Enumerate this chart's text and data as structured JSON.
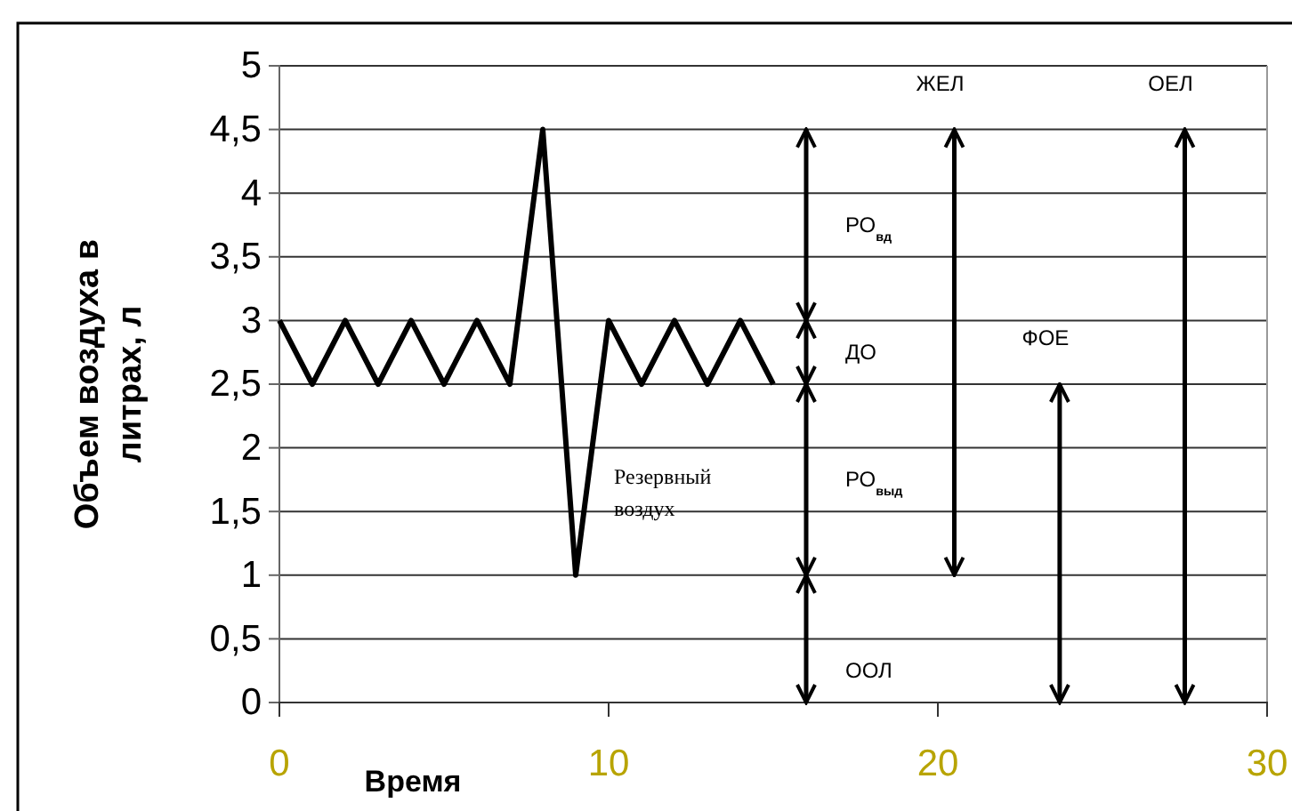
{
  "chart_data": {
    "type": "line",
    "xlabel": "Время",
    "ylabel": "Объем воздуха в литрах, л",
    "xlim": [
      0,
      30
    ],
    "xticks": [
      0,
      10,
      20,
      30
    ],
    "ylim": [
      0,
      5
    ],
    "yticks": [
      {
        "value": 0,
        "label": "0"
      },
      {
        "value": 0.5,
        "label": "0,5"
      },
      {
        "value": 1,
        "label": "1"
      },
      {
        "value": 1.5,
        "label": "1,5"
      },
      {
        "value": 2,
        "label": "2"
      },
      {
        "value": 2.5,
        "label": "2,5"
      },
      {
        "value": 3,
        "label": "3"
      },
      {
        "value": 3.5,
        "label": "3,5"
      },
      {
        "value": 4,
        "label": "4"
      },
      {
        "value": 4.5,
        "label": "4,5"
      },
      {
        "value": 5,
        "label": "5"
      }
    ],
    "grid": "y",
    "line_style": "solid",
    "series": [
      {
        "color": "#000000",
        "x": [
          0,
          1,
          2,
          3,
          4,
          5,
          6,
          7,
          8,
          9,
          10,
          11,
          12,
          13,
          14,
          15
        ],
        "values": [
          3,
          2.5,
          3,
          2.5,
          3,
          2.5,
          3,
          2.5,
          4.5,
          1,
          3,
          2.5,
          3,
          2.5,
          3,
          2.5
        ]
      },
      {
        "color": "#000000",
        "x": [
          16,
          16
        ],
        "values": [
          3,
          4.5
        ]
      },
      {
        "color": "#000000",
        "x": [
          16,
          16
        ],
        "values": [
          2.5,
          3
        ]
      },
      {
        "color": "#000000",
        "x": [
          16,
          16
        ],
        "values": [
          1,
          2.5
        ]
      },
      {
        "color": "#000000",
        "x": [
          16,
          16
        ],
        "values": [
          0,
          1
        ]
      },
      {
        "color": "#000000",
        "x": [
          20.5,
          20.5
        ],
        "values": [
          1,
          4.5
        ]
      },
      {
        "color": "#000000",
        "x": [
          23.7,
          23.7
        ],
        "values": [
          0,
          2.5
        ]
      },
      {
        "color": "#000000",
        "x": [
          27.5,
          27.5
        ],
        "values": [
          0,
          4.5
        ]
      }
    ],
    "annotations": [
      {
        "text": "РО$_{вд}$",
        "x": 16,
        "y": 3.75
      },
      {
        "text": "ДО",
        "x": 16,
        "y": 2.75
      },
      {
        "text": "РО$_{выд}$",
        "x": 16,
        "y": 1.75
      },
      {
        "text": "ООЛ",
        "x": 16,
        "y": 0.25
      },
      {
        "text": "ЖЕЛ",
        "x": 20.5,
        "y": 4.5
      },
      {
        "text": "ФОЕ",
        "x": 23.7,
        "y": 2.5
      },
      {
        "text": "ОЕЛ",
        "x": 27.5,
        "y": 4.5
      },
      "Резервный воздух"
    ]
  }
}
